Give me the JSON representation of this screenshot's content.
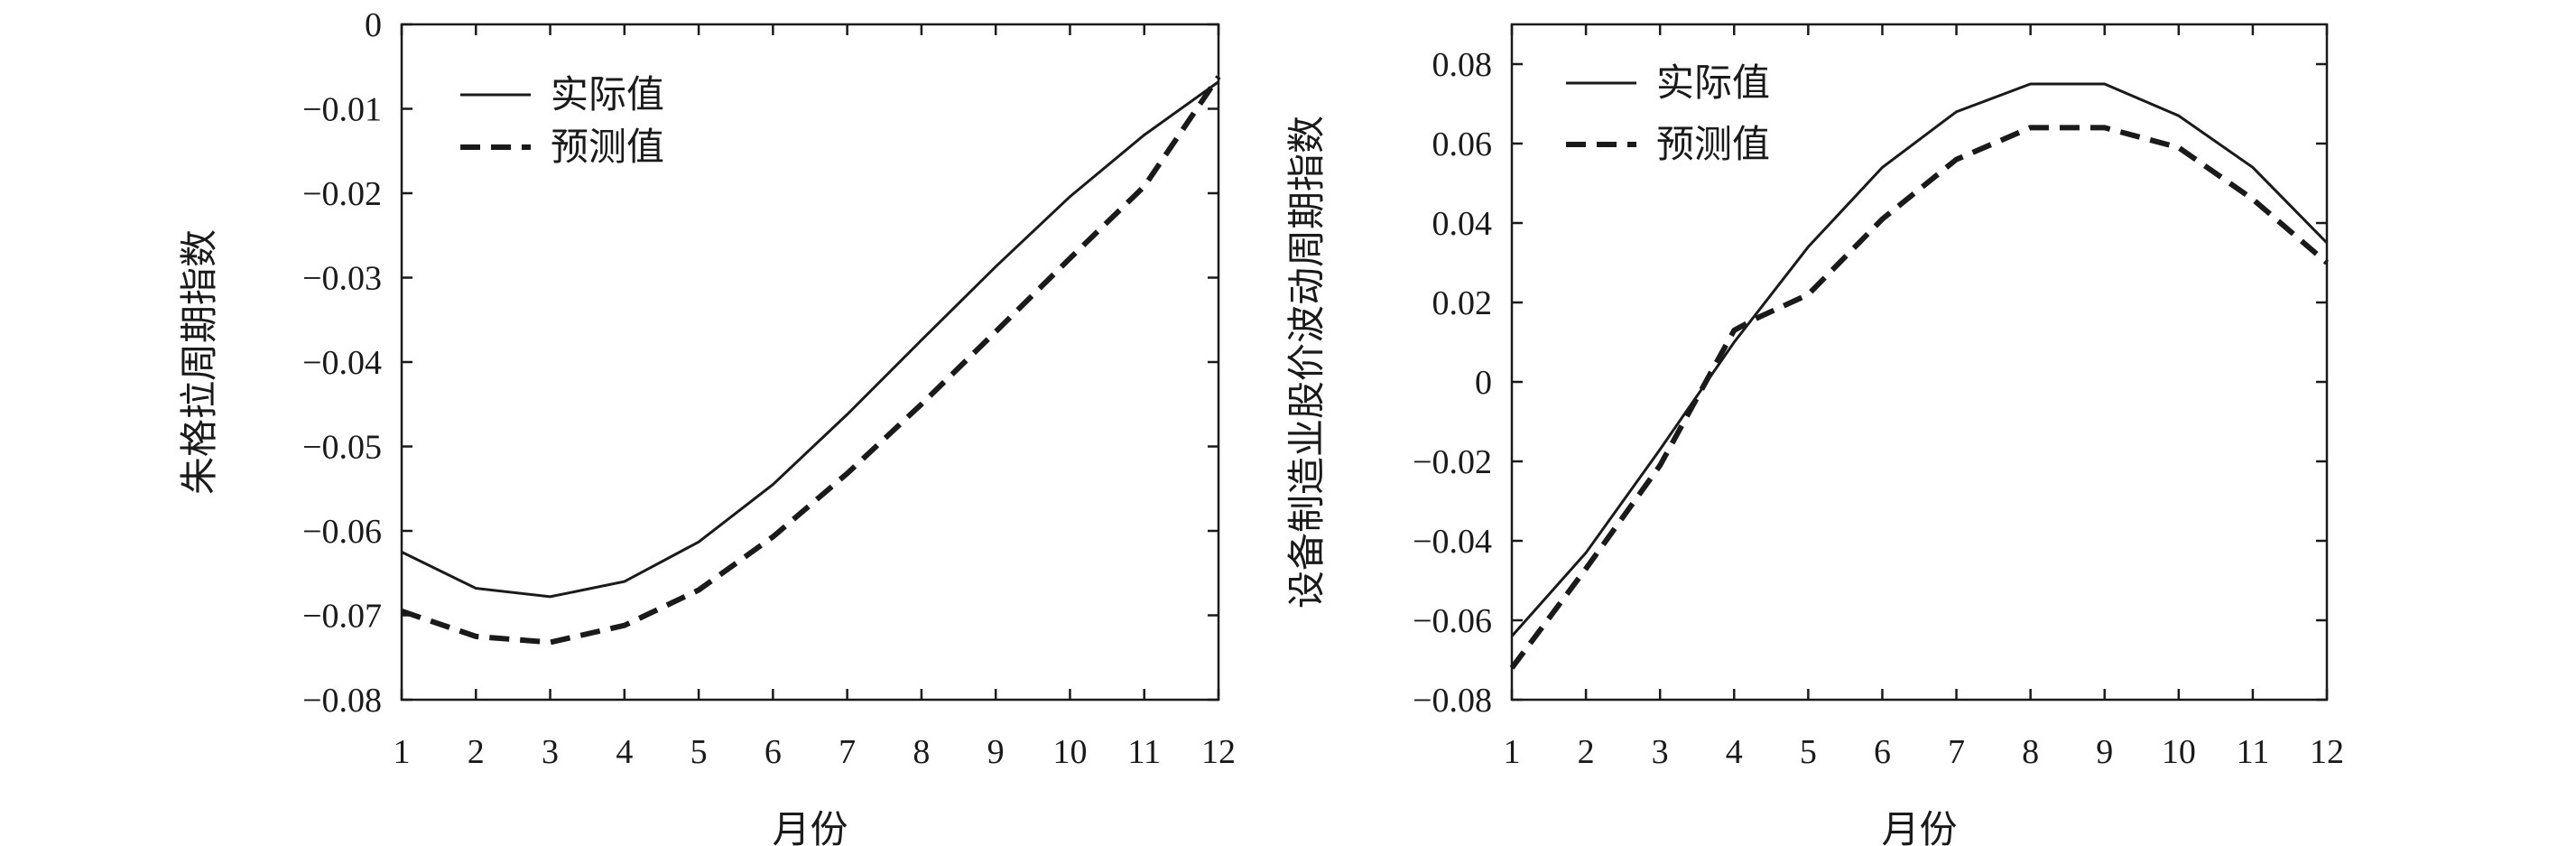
{
  "chart_data": [
    {
      "type": "line",
      "title": "",
      "xlabel": "月份",
      "ylabel": "朱格拉周期指数",
      "x": [
        1,
        2,
        3,
        4,
        5,
        6,
        7,
        8,
        9,
        10,
        11,
        12
      ],
      "xticks": [
        "1",
        "2",
        "3",
        "4",
        "5",
        "6",
        "7",
        "8",
        "9",
        "10",
        "11",
        "12"
      ],
      "xlim": [
        1,
        12
      ],
      "ylim": [
        -0.08,
        0
      ],
      "yticks": [
        0,
        -0.01,
        -0.02,
        -0.03,
        -0.04,
        -0.05,
        -0.06,
        -0.07,
        -0.08
      ],
      "ytick_labels": [
        "0",
        "−0.01",
        "−0.02",
        "−0.03",
        "−0.04",
        "−0.05",
        "−0.06",
        "−0.07",
        "−0.08"
      ],
      "legend_position": "top-left",
      "series": [
        {
          "name": "实际值",
          "style": "solid",
          "values": [
            -0.0625,
            -0.0668,
            -0.0678,
            -0.066,
            -0.0613,
            -0.0545,
            -0.0462,
            -0.0374,
            -0.0287,
            -0.0204,
            -0.0131,
            -0.0068
          ]
        },
        {
          "name": "预测值",
          "style": "dashed",
          "values": [
            -0.0695,
            -0.0725,
            -0.0732,
            -0.0712,
            -0.067,
            -0.0607,
            -0.0532,
            -0.045,
            -0.0364,
            -0.0277,
            -0.0192,
            -0.0062
          ]
        }
      ]
    },
    {
      "type": "line",
      "title": "",
      "xlabel": "月份",
      "ylabel": "设备制造业股价波动周期指数",
      "x": [
        1,
        2,
        3,
        4,
        5,
        6,
        7,
        8,
        9,
        10,
        11,
        12
      ],
      "xticks": [
        "1",
        "2",
        "3",
        "4",
        "5",
        "6",
        "7",
        "8",
        "9",
        "10",
        "11",
        "12"
      ],
      "xlim": [
        1,
        12
      ],
      "ylim": [
        -0.08,
        0.09
      ],
      "yticks": [
        0.08,
        0.06,
        0.04,
        0.02,
        0,
        -0.02,
        -0.04,
        -0.06,
        -0.08
      ],
      "ytick_labels": [
        "0.08",
        "0.06",
        "0.04",
        "0.02",
        "0",
        "−0.02",
        "−0.04",
        "−0.06",
        "−0.08"
      ],
      "legend_position": "top-left",
      "series": [
        {
          "name": "实际值",
          "style": "solid",
          "x": [
            1,
            2,
            3,
            4,
            5,
            6,
            7,
            8,
            9,
            10,
            11,
            12
          ],
          "values": [
            -0.064,
            -0.043,
            -0.017,
            0.01,
            0.034,
            0.054,
            0.068,
            0.075,
            0.075,
            0.067,
            0.054,
            0.035
          ]
        },
        {
          "name": "预测值",
          "style": "dashed",
          "x": [
            1,
            2,
            3,
            3.5,
            4,
            4.3,
            5,
            6,
            7,
            8,
            9,
            10,
            11,
            12
          ],
          "values": [
            -0.072,
            -0.047,
            -0.021,
            -0.004,
            0.013,
            0.016,
            0.022,
            0.041,
            0.056,
            0.064,
            0.064,
            0.059,
            0.046,
            0.03
          ]
        }
      ]
    }
  ]
}
